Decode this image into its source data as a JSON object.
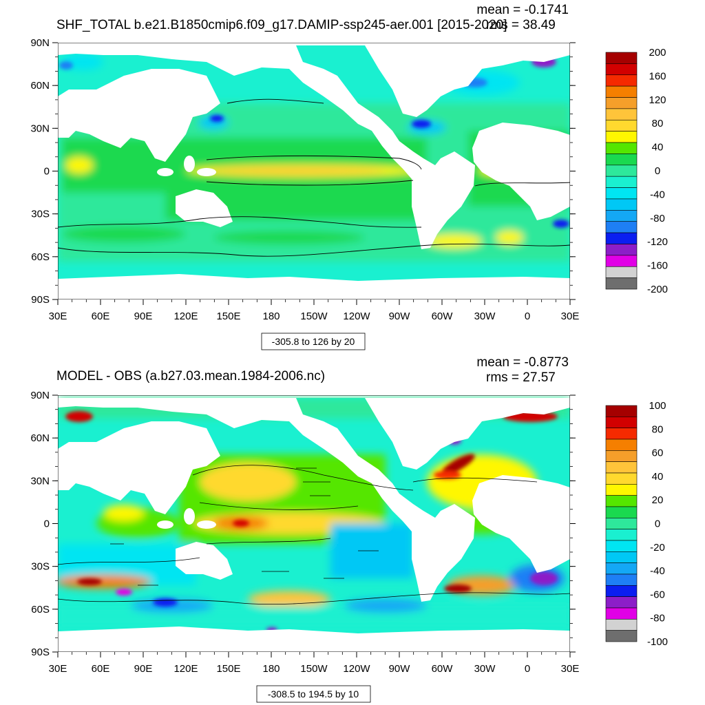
{
  "chart_data": [
    {
      "type": "heatmap",
      "title": "SHF_TOTAL b.e21.B1850cmip6.f09_g17.DAMIP-ssp245-aer.001 [2015-2020]",
      "stats": {
        "mean": "mean = -0.1741",
        "rms": "rms = 38.49"
      },
      "x_tick_labels": [
        "30E",
        "60E",
        "90E",
        "120E",
        "150E",
        "180",
        "150W",
        "120W",
        "90W",
        "60W",
        "30W",
        "0",
        "30E"
      ],
      "y_tick_labels": [
        "90N",
        "60N",
        "30N",
        "0",
        "30S",
        "60S",
        "90S"
      ],
      "colorbar": {
        "labels": [
          "200",
          "160",
          "120",
          "80",
          "40",
          "0",
          "-40",
          "-80",
          "-120",
          "-160",
          "-200"
        ],
        "colors": [
          "#a50000",
          "#d20000",
          "#f52a00",
          "#f57f00",
          "#f59f2a",
          "#ffc43a",
          "#ffd92e",
          "#fff700",
          "#55e600",
          "#1ad94f",
          "#2ee89b",
          "#1af0d0",
          "#00e5f2",
          "#00c8f5",
          "#14a8f5",
          "#1e7ff5",
          "#0a1ef0",
          "#8c1ec8",
          "#e100e6",
          "#d2d2d2",
          "#6e6e6e"
        ],
        "value_range": [
          -200,
          200
        ]
      },
      "contour_info": "-305.8 to 126 by 20",
      "ylim": [
        -90,
        90
      ],
      "xlim": [
        "30E",
        "30E"
      ]
    },
    {
      "type": "heatmap",
      "title": "MODEL - OBS (a.b27.03.mean.1984-2006.nc)",
      "stats": {
        "mean": "mean = -0.8773",
        "rms": "rms = 27.57"
      },
      "x_tick_labels": [
        "30E",
        "60E",
        "90E",
        "120E",
        "150E",
        "180",
        "150W",
        "120W",
        "90W",
        "60W",
        "30W",
        "0",
        "30E"
      ],
      "y_tick_labels": [
        "90N",
        "60N",
        "30N",
        "0",
        "30S",
        "60S",
        "90S"
      ],
      "colorbar": {
        "labels": [
          "100",
          "80",
          "60",
          "40",
          "20",
          "0",
          "-20",
          "-40",
          "-60",
          "-80",
          "-100"
        ],
        "colors": [
          "#a50000",
          "#d20000",
          "#f52a00",
          "#f57f00",
          "#f59f2a",
          "#ffc43a",
          "#ffd92e",
          "#fff700",
          "#55e600",
          "#1ad94f",
          "#2ee89b",
          "#1af0d0",
          "#00e5f2",
          "#00c8f5",
          "#14a8f5",
          "#1e7ff5",
          "#0a1ef0",
          "#8c1ec8",
          "#e100e6",
          "#d2d2d2",
          "#6e6e6e"
        ],
        "value_range": [
          -100,
          100
        ]
      },
      "contour_info": "-308.5 to 194.5 by 10",
      "ylim": [
        -90,
        90
      ],
      "xlim": [
        "30E",
        "30E"
      ]
    }
  ],
  "colors": {
    "land": "#ffffff",
    "ocean_base": "#1ad94f"
  }
}
